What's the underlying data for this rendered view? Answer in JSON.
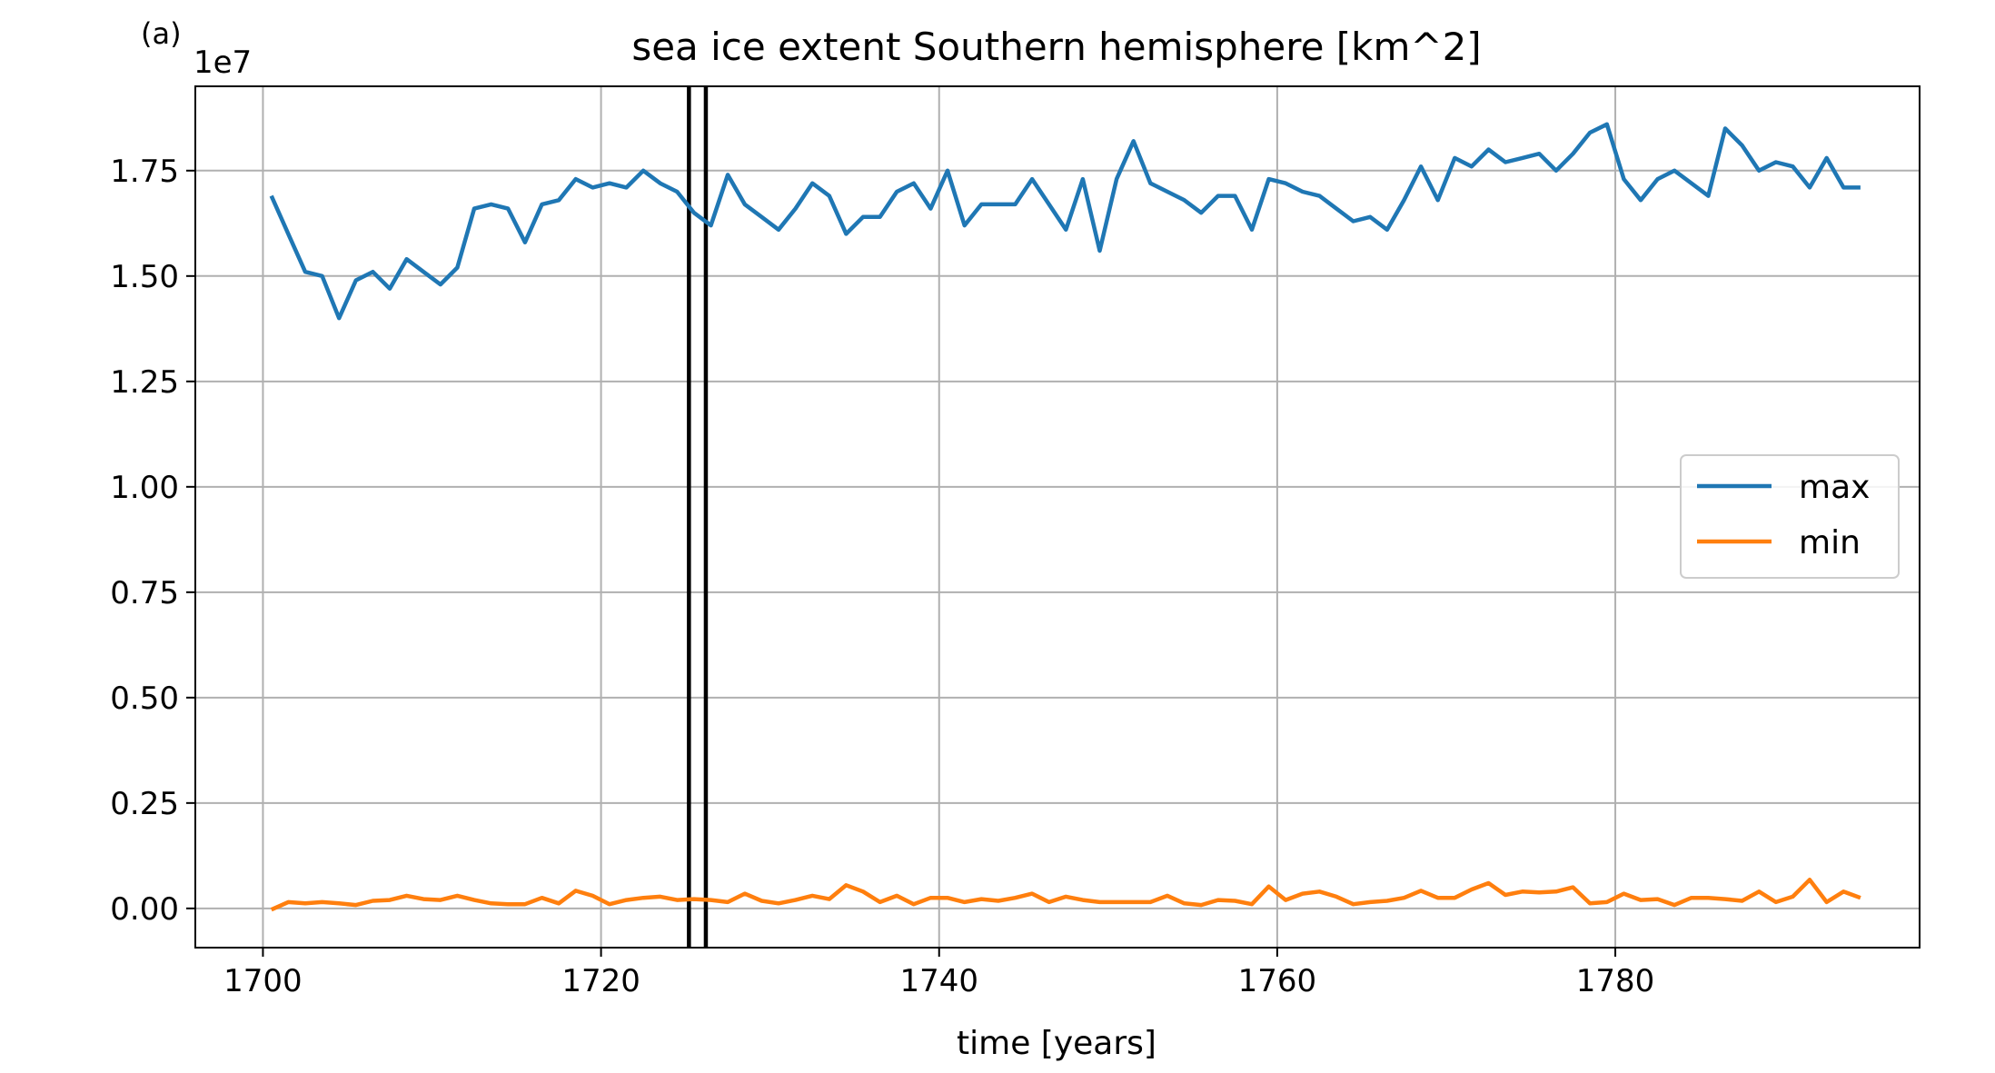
{
  "panel_label": "(a)",
  "chart_data": {
    "type": "line",
    "title": "sea ice extent Southern hemisphere [km^2]",
    "xlabel": "time [years]",
    "ylabel": "",
    "offset_text": "1e7",
    "xlim": [
      1696,
      1798
    ],
    "ylim": [
      -0.093,
      1.95
    ],
    "xticks": [
      1700,
      1720,
      1740,
      1760,
      1780
    ],
    "yticks": [
      0.0,
      0.25,
      0.5,
      0.75,
      1.0,
      1.25,
      1.5,
      1.75
    ],
    "ytick_labels": [
      "0.00",
      "0.25",
      "0.50",
      "0.75",
      "1.00",
      "1.25",
      "1.50",
      "1.75"
    ],
    "grid": true,
    "legend_position": "center-right",
    "vertical_lines": [
      1725.2,
      1726.2
    ],
    "x": [
      1700.5,
      1701.5,
      1702.5,
      1703.5,
      1704.5,
      1705.5,
      1706.5,
      1707.5,
      1708.5,
      1709.5,
      1710.5,
      1711.5,
      1712.5,
      1713.5,
      1714.5,
      1715.5,
      1716.5,
      1717.5,
      1718.5,
      1719.5,
      1720.5,
      1721.5,
      1722.5,
      1723.5,
      1724.5,
      1725.5,
      1726.5,
      1727.5,
      1728.5,
      1729.5,
      1730.5,
      1731.5,
      1732.5,
      1733.5,
      1734.5,
      1735.5,
      1736.5,
      1737.5,
      1738.5,
      1739.5,
      1740.5,
      1741.5,
      1742.5,
      1743.5,
      1744.5,
      1745.5,
      1746.5,
      1747.5,
      1748.5,
      1749.5,
      1750.5,
      1751.5,
      1752.5,
      1753.5,
      1754.5,
      1755.5,
      1756.5,
      1757.5,
      1758.5,
      1759.5,
      1760.5,
      1761.5,
      1762.5,
      1763.5,
      1764.5,
      1765.5,
      1766.5,
      1767.5,
      1768.5,
      1769.5,
      1770.5,
      1771.5,
      1772.5,
      1773.5,
      1774.5,
      1775.5,
      1776.5,
      1777.5,
      1778.5,
      1779.5,
      1780.5,
      1781.5,
      1782.5,
      1783.5,
      1784.5,
      1785.5,
      1786.5,
      1787.5,
      1788.5,
      1789.5,
      1790.5,
      1791.5,
      1792.5,
      1793.5,
      1794.5
    ],
    "series": [
      {
        "name": "max",
        "color": "#1f77b4",
        "values": [
          1.69,
          1.6,
          1.51,
          1.5,
          1.4,
          1.49,
          1.51,
          1.47,
          1.54,
          1.51,
          1.48,
          1.52,
          1.66,
          1.67,
          1.66,
          1.58,
          1.67,
          1.68,
          1.73,
          1.71,
          1.72,
          1.71,
          1.75,
          1.72,
          1.7,
          1.65,
          1.62,
          1.74,
          1.67,
          1.64,
          1.61,
          1.66,
          1.72,
          1.69,
          1.6,
          1.64,
          1.64,
          1.7,
          1.72,
          1.66,
          1.75,
          1.62,
          1.67,
          1.67,
          1.67,
          1.73,
          1.67,
          1.61,
          1.73,
          1.56,
          1.73,
          1.82,
          1.72,
          1.7,
          1.68,
          1.65,
          1.69,
          1.69,
          1.61,
          1.73,
          1.72,
          1.7,
          1.69,
          1.66,
          1.63,
          1.64,
          1.61,
          1.68,
          1.76,
          1.68,
          1.78,
          1.76,
          1.8,
          1.77,
          1.78,
          1.79,
          1.75,
          1.79,
          1.84,
          1.86,
          1.73,
          1.68,
          1.73,
          1.75,
          1.72,
          1.69,
          1.85,
          1.81,
          1.75,
          1.77,
          1.76,
          1.71,
          1.78,
          1.71,
          1.71
        ]
      },
      {
        "name": "min",
        "color": "#ff7f0e",
        "values": [
          -0.003,
          0.015,
          0.012,
          0.015,
          0.012,
          0.008,
          0.018,
          0.02,
          0.03,
          0.022,
          0.02,
          0.03,
          0.02,
          0.012,
          0.01,
          0.01,
          0.025,
          0.012,
          0.042,
          0.03,
          0.01,
          0.02,
          0.025,
          0.028,
          0.02,
          0.022,
          0.02,
          0.015,
          0.035,
          0.018,
          0.012,
          0.02,
          0.03,
          0.022,
          0.055,
          0.04,
          0.015,
          0.03,
          0.01,
          0.025,
          0.025,
          0.015,
          0.022,
          0.018,
          0.025,
          0.035,
          0.015,
          0.028,
          0.02,
          0.015,
          0.015,
          0.015,
          0.015,
          0.03,
          0.012,
          0.008,
          0.02,
          0.018,
          0.01,
          0.052,
          0.02,
          0.035,
          0.04,
          0.028,
          0.01,
          0.015,
          0.018,
          0.025,
          0.042,
          0.025,
          0.025,
          0.045,
          0.06,
          0.032,
          0.04,
          0.038,
          0.04,
          0.05,
          0.012,
          0.015,
          0.035,
          0.02,
          0.022,
          0.008,
          0.025,
          0.025,
          0.022,
          0.018,
          0.04,
          0.015,
          0.028,
          0.068,
          0.015,
          0.04,
          0.025
        ]
      }
    ]
  }
}
